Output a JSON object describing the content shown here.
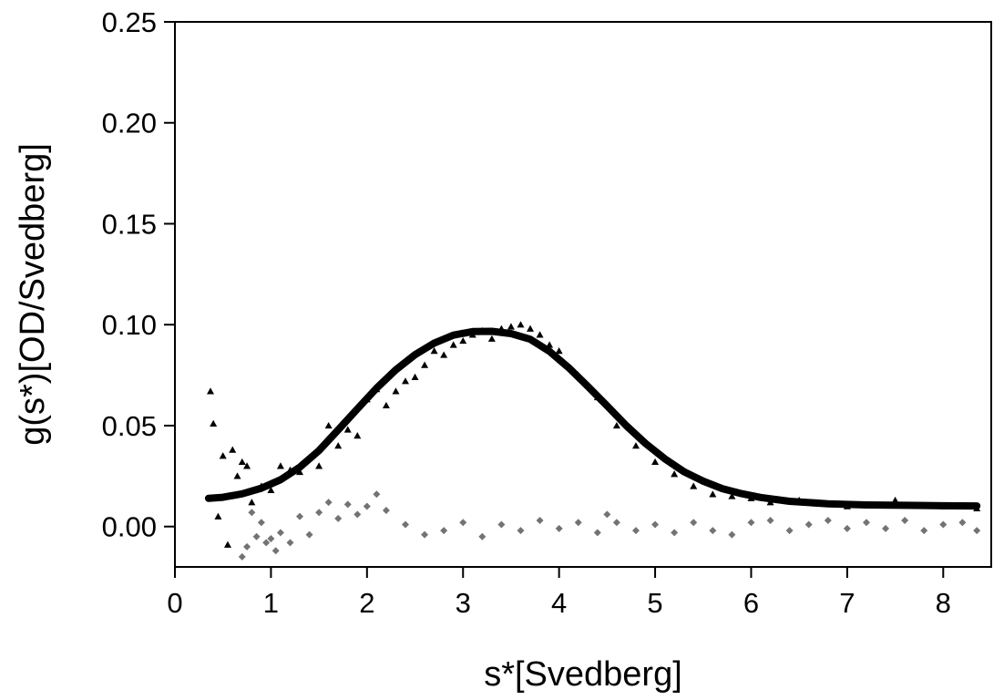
{
  "chart_data": {
    "type": "scatter",
    "title": "",
    "xlabel": "s*[Svedberg]",
    "ylabel": "g(s*)[OD/Svedberg]",
    "xlim": [
      0,
      8.5
    ],
    "ylim": [
      -0.02,
      0.25
    ],
    "xticks": [
      "0",
      "1",
      "2",
      "3",
      "4",
      "5",
      "6",
      "7",
      "8"
    ],
    "yticks": [
      "0.00",
      "0.05",
      "0.10",
      "0.15",
      "0.20",
      "0.25"
    ],
    "grid": false,
    "colors": {
      "data": "#000000",
      "fit": "#000000",
      "residuals": "#737373"
    },
    "series": [
      {
        "marker": "triangle",
        "x": [
          0.37,
          0.4,
          0.45,
          0.5,
          0.55,
          0.6,
          0.65,
          0.7,
          0.75,
          0.8,
          0.9,
          1.0,
          1.1,
          1.2,
          1.3,
          1.4,
          1.5,
          1.6,
          1.7,
          1.8,
          1.9,
          2.0,
          2.1,
          2.2,
          2.3,
          2.4,
          2.5,
          2.6,
          2.7,
          2.8,
          2.9,
          3.0,
          3.1,
          3.2,
          3.3,
          3.4,
          3.5,
          3.6,
          3.7,
          3.8,
          3.9,
          4.0,
          4.2,
          4.4,
          4.6,
          4.8,
          5.0,
          5.2,
          5.4,
          5.6,
          5.8,
          6.0,
          6.2,
          6.5,
          7.0,
          7.5,
          8.0,
          8.35
        ],
        "y": [
          0.067,
          0.051,
          0.005,
          0.035,
          -0.009,
          0.038,
          0.025,
          0.032,
          0.03,
          0.012,
          0.02,
          0.018,
          0.03,
          0.028,
          0.027,
          0.034,
          0.03,
          0.05,
          0.04,
          0.048,
          0.045,
          0.063,
          0.068,
          0.06,
          0.067,
          0.072,
          0.074,
          0.08,
          0.087,
          0.085,
          0.09,
          0.092,
          0.095,
          0.097,
          0.093,
          0.098,
          0.099,
          0.1,
          0.098,
          0.095,
          0.09,
          0.087,
          0.075,
          0.064,
          0.05,
          0.04,
          0.032,
          0.026,
          0.02,
          0.016,
          0.015,
          0.014,
          0.012,
          0.013,
          0.01,
          0.013,
          0.01,
          0.009
        ]
      },
      {
        "marker": "line",
        "x": [
          0.35,
          0.5,
          0.7,
          0.9,
          1.1,
          1.3,
          1.5,
          1.7,
          1.9,
          2.1,
          2.3,
          2.5,
          2.7,
          2.9,
          3.1,
          3.3,
          3.5,
          3.7,
          3.9,
          4.1,
          4.3,
          4.5,
          4.7,
          4.9,
          5.1,
          5.3,
          5.5,
          5.7,
          5.9,
          6.1,
          6.4,
          6.8,
          7.2,
          7.6,
          8.0,
          8.35
        ],
        "y": [
          0.014,
          0.0145,
          0.0162,
          0.019,
          0.0232,
          0.0294,
          0.0376,
          0.0479,
          0.0583,
          0.0686,
          0.0776,
          0.0851,
          0.0909,
          0.0948,
          0.0966,
          0.0967,
          0.0956,
          0.0928,
          0.0868,
          0.0787,
          0.0694,
          0.0598,
          0.05,
          0.0412,
          0.0336,
          0.0272,
          0.0225,
          0.0188,
          0.0163,
          0.0144,
          0.0125,
          0.0113,
          0.0107,
          0.0105,
          0.0103,
          0.0102
        ]
      },
      {
        "marker": "diamond",
        "x": [
          0.7,
          0.75,
          0.8,
          0.85,
          0.9,
          0.95,
          1.0,
          1.05,
          1.1,
          1.2,
          1.3,
          1.4,
          1.5,
          1.6,
          1.7,
          1.8,
          1.9,
          2.0,
          2.1,
          2.2,
          2.4,
          2.6,
          2.8,
          3.0,
          3.2,
          3.4,
          3.6,
          3.8,
          4.0,
          4.2,
          4.4,
          4.5,
          4.6,
          4.8,
          5.0,
          5.2,
          5.4,
          5.6,
          5.8,
          6.0,
          6.2,
          6.4,
          6.6,
          6.8,
          7.0,
          7.2,
          7.4,
          7.6,
          7.8,
          8.0,
          8.2,
          8.35
        ],
        "y": [
          -0.015,
          -0.01,
          0.007,
          -0.005,
          0.002,
          -0.008,
          -0.006,
          -0.012,
          -0.003,
          -0.008,
          0.005,
          -0.004,
          0.007,
          0.012,
          0.004,
          0.011,
          0.006,
          0.01,
          0.016,
          0.008,
          0.001,
          -0.004,
          -0.002,
          0.002,
          -0.005,
          0.001,
          -0.002,
          0.003,
          -0.001,
          0.002,
          -0.003,
          0.006,
          0.002,
          -0.002,
          0.001,
          -0.003,
          0.002,
          -0.002,
          -0.004,
          0.002,
          0.003,
          -0.002,
          0.001,
          0.003,
          -0.001,
          0.002,
          -0.001,
          0.003,
          -0.002,
          0.001,
          0.002,
          -0.002
        ]
      }
    ]
  }
}
